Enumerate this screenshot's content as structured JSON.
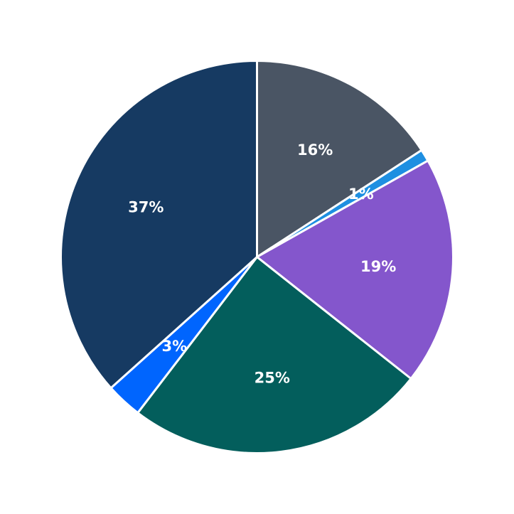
{
  "chart_data": {
    "type": "pie",
    "title": "",
    "start_angle_deg": 90,
    "direction": "clockwise",
    "slices": [
      {
        "value": 16,
        "label": "16%",
        "color": "#4a5564"
      },
      {
        "value": 1,
        "label": "1%",
        "color": "#1e8fe1"
      },
      {
        "value": 19,
        "label": "19%",
        "color": "#8456cc"
      },
      {
        "value": 25,
        "label": "25%",
        "color": "#035e5c"
      },
      {
        "value": 3,
        "label": "3%",
        "color": "#0065fe"
      },
      {
        "value": 37,
        "label": "37%",
        "color": "#163a62"
      }
    ]
  }
}
